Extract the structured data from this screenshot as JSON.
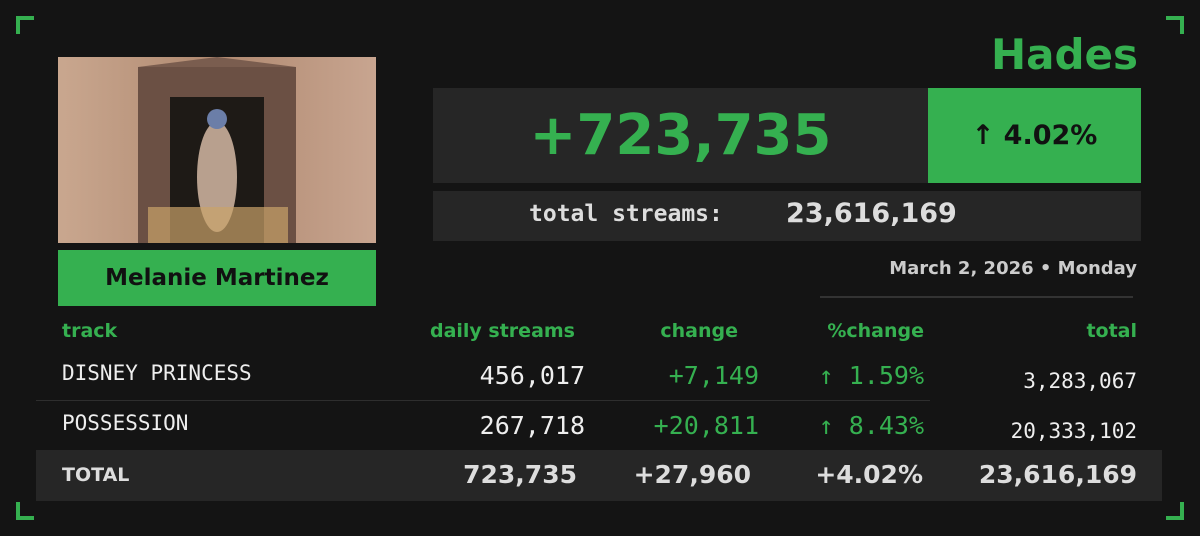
{
  "header": {
    "song": "Hades",
    "artist": "Melanie Martinez",
    "daily_gain": "+723,735",
    "daily_change": "↑ 4.02%",
    "total_label": "total streams:",
    "total_value": "23,616,169",
    "date": "March 2, 2026 • Monday"
  },
  "table": {
    "columns": [
      "track",
      "daily streams",
      "change",
      "%change",
      "total"
    ],
    "rows": [
      [
        "DISNEY PRINCESS",
        "456,017",
        "+7,149",
        "↑ 1.59%",
        "3,283,067"
      ],
      [
        "POSSESSION",
        "267,718",
        "+20,811",
        "↑ 8.43%",
        "20,333,102"
      ]
    ],
    "total_row": [
      "TOTAL",
      "723,735",
      "+27,960",
      "+4.02%",
      "23,616,169"
    ]
  }
}
